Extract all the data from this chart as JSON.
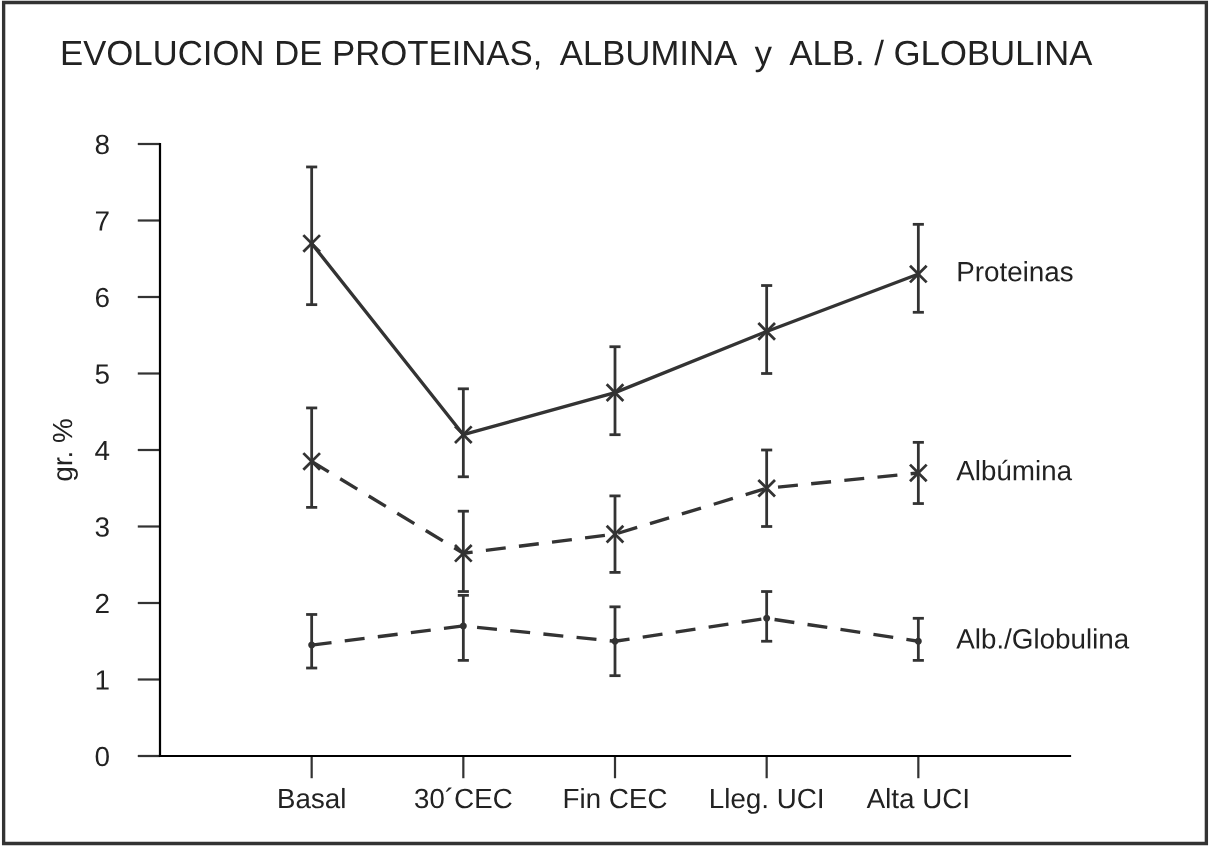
{
  "chart_data": {
    "type": "line",
    "title": "EVOLUCION DE PROTEINAS,  ALBUMINA  y  ALB. / GLOBULINA",
    "ylabel": "gr. %",
    "categories": [
      "Basal",
      "30´CEC",
      "Fin CEC",
      "Lleg. UCI",
      "Alta UCI"
    ],
    "series": [
      {
        "name": "Proteinas",
        "color": "#333333",
        "line_style": "solid",
        "marker": "cross",
        "values": [
          6.7,
          4.2,
          4.75,
          5.55,
          6.3
        ],
        "errors": [
          [
            5.9,
            7.7
          ],
          [
            3.65,
            4.8
          ],
          [
            4.2,
            5.35
          ],
          [
            5.0,
            6.15
          ],
          [
            5.8,
            6.95
          ]
        ]
      },
      {
        "name": "Albúmina",
        "color": "#333333",
        "line_style": "dashed",
        "marker": "cross",
        "values": [
          3.85,
          2.65,
          2.9,
          3.5,
          3.7
        ],
        "errors": [
          [
            3.25,
            4.55
          ],
          [
            2.15,
            3.2
          ],
          [
            2.4,
            3.4
          ],
          [
            3.0,
            4.0
          ],
          [
            3.3,
            4.1
          ]
        ]
      },
      {
        "name": "Alb./Globulina",
        "color": "#333333",
        "line_style": "dashed",
        "marker": "none",
        "values": [
          1.45,
          1.7,
          1.5,
          1.8,
          1.5
        ],
        "errors": [
          [
            1.15,
            1.85
          ],
          [
            1.25,
            2.1
          ],
          [
            1.05,
            1.95
          ],
          [
            1.5,
            2.15
          ],
          [
            1.25,
            1.8
          ]
        ]
      }
    ],
    "ylim": [
      0,
      8
    ],
    "yticks": [
      0,
      1,
      2,
      3,
      4,
      5,
      6,
      7,
      8
    ],
    "grid": false,
    "legend": false
  }
}
